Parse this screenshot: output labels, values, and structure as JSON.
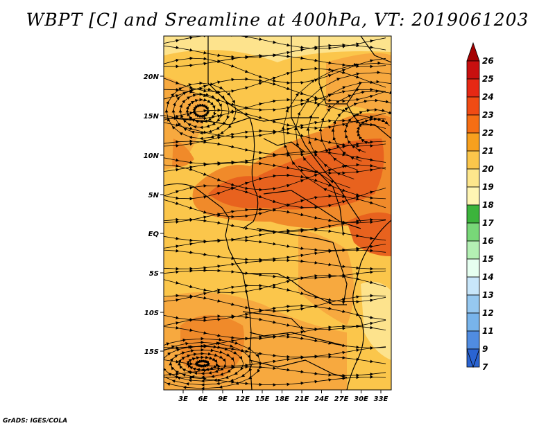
{
  "title": "WBPT [C] and Sreamline at 400hPa, VT: 2019061203",
  "credit": "GrADS: IGES/COLA",
  "map": {
    "lat_ticks": [
      "20N",
      "15N",
      "10N",
      "5N",
      "EQ",
      "5S",
      "10S",
      "15S"
    ],
    "lon_ticks": [
      "3E",
      "6E",
      "9E",
      "12E",
      "15E",
      "18E",
      "21E",
      "24E",
      "27E",
      "30E",
      "33E"
    ],
    "field_colors": [
      "#fde38d",
      "#fdc060",
      "#f7a93f",
      "#f08a2a",
      "#e8621e"
    ],
    "contour_color": "#f7a93f",
    "streamline_color": "#000000",
    "border_color": "#000000"
  },
  "colorbar": {
    "levels": [
      {
        "label": "26",
        "color": "#a50000"
      },
      {
        "label": "25",
        "color": "#c80f0f"
      },
      {
        "label": "24",
        "color": "#e62814"
      },
      {
        "label": "23",
        "color": "#f04b14"
      },
      {
        "label": "22",
        "color": "#f56e14"
      },
      {
        "label": "21",
        "color": "#f7a01e"
      },
      {
        "label": "20",
        "color": "#fbc64b"
      },
      {
        "label": "19",
        "color": "#fde68c"
      },
      {
        "label": "18",
        "color": "#fff5b4"
      },
      {
        "label": "17",
        "color": "#3cb43c"
      },
      {
        "label": "16",
        "color": "#78d778"
      },
      {
        "label": "15",
        "color": "#b4f0b4"
      },
      {
        "label": "14",
        "color": "#e6fff0"
      },
      {
        "label": "13",
        "color": "#c8e6fa"
      },
      {
        "label": "12",
        "color": "#96c8f0"
      },
      {
        "label": "11",
        "color": "#78b4eb"
      },
      {
        "label": "9",
        "color": "#508ce1"
      },
      {
        "label": "7",
        "color": "#2a64d2"
      }
    ],
    "bottom_label": "7"
  }
}
